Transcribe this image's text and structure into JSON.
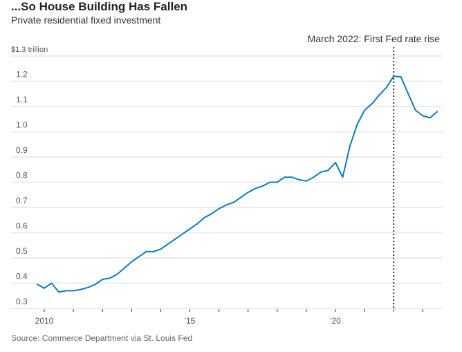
{
  "title": "...So House Building Has Fallen",
  "subtitle": "Private residential fixed investment",
  "source": "Source: Commerce Department via St. Louis Fed",
  "chart_data": {
    "type": "line",
    "title": "...So House Building Has Fallen",
    "subtitle": "Private residential fixed investment",
    "xlabel": "",
    "ylabel": "",
    "ylim": [
      0.3,
      1.3
    ],
    "xlim": [
      2009.5,
      2023.75
    ],
    "grid": true,
    "line_color": "#0a7db4",
    "y_ticks": [
      {
        "value": 1.3,
        "label": "$1.3 trillion"
      },
      {
        "value": 1.2,
        "label": "1.2"
      },
      {
        "value": 1.1,
        "label": "1.1"
      },
      {
        "value": 1.0,
        "label": "1.0"
      },
      {
        "value": 0.9,
        "label": "0.9"
      },
      {
        "value": 0.8,
        "label": "0.8"
      },
      {
        "value": 0.7,
        "label": "0.7"
      },
      {
        "value": 0.6,
        "label": "0.6"
      },
      {
        "value": 0.5,
        "label": "0.5"
      },
      {
        "value": 0.4,
        "label": "0.4"
      },
      {
        "value": 0.3,
        "label": "0.3"
      }
    ],
    "x_ticks": [
      {
        "value": 2010,
        "label": "2010"
      },
      {
        "value": 2015,
        "label": "'15"
      },
      {
        "value": 2020,
        "label": "'20"
      }
    ],
    "x_minor_ticks": [
      2010,
      2011,
      2012,
      2013,
      2014,
      2015,
      2016,
      2017,
      2018,
      2019,
      2020,
      2021,
      2022,
      2023
    ],
    "annotation": {
      "x": 2022.0,
      "label": "March 2022: First Fed rate rise",
      "style": "dotted"
    },
    "x": [
      2009.75,
      2010.0,
      2010.25,
      2010.5,
      2010.75,
      2011.0,
      2011.25,
      2011.5,
      2011.75,
      2012.0,
      2012.25,
      2012.5,
      2012.75,
      2013.0,
      2013.25,
      2013.5,
      2013.75,
      2014.0,
      2014.25,
      2014.5,
      2014.75,
      2015.0,
      2015.25,
      2015.5,
      2015.75,
      2016.0,
      2016.25,
      2016.5,
      2016.75,
      2017.0,
      2017.25,
      2017.5,
      2017.75,
      2018.0,
      2018.25,
      2018.5,
      2018.75,
      2019.0,
      2019.25,
      2019.5,
      2019.75,
      2020.0,
      2020.25,
      2020.5,
      2020.75,
      2021.0,
      2021.25,
      2021.5,
      2021.75,
      2022.0,
      2022.25,
      2022.5,
      2022.75,
      2023.0,
      2023.25,
      2023.5
    ],
    "values": [
      0.396,
      0.38,
      0.4,
      0.365,
      0.37,
      0.37,
      0.375,
      0.383,
      0.395,
      0.415,
      0.42,
      0.435,
      0.46,
      0.485,
      0.505,
      0.525,
      0.525,
      0.535,
      0.555,
      0.575,
      0.595,
      0.615,
      0.635,
      0.66,
      0.675,
      0.695,
      0.71,
      0.72,
      0.74,
      0.76,
      0.775,
      0.785,
      0.8,
      0.8,
      0.82,
      0.82,
      0.81,
      0.805,
      0.82,
      0.84,
      0.847,
      0.878,
      0.82,
      0.945,
      1.03,
      1.085,
      1.11,
      1.145,
      1.175,
      1.22,
      1.217,
      1.15,
      1.085,
      1.063,
      1.055,
      1.08
    ]
  }
}
